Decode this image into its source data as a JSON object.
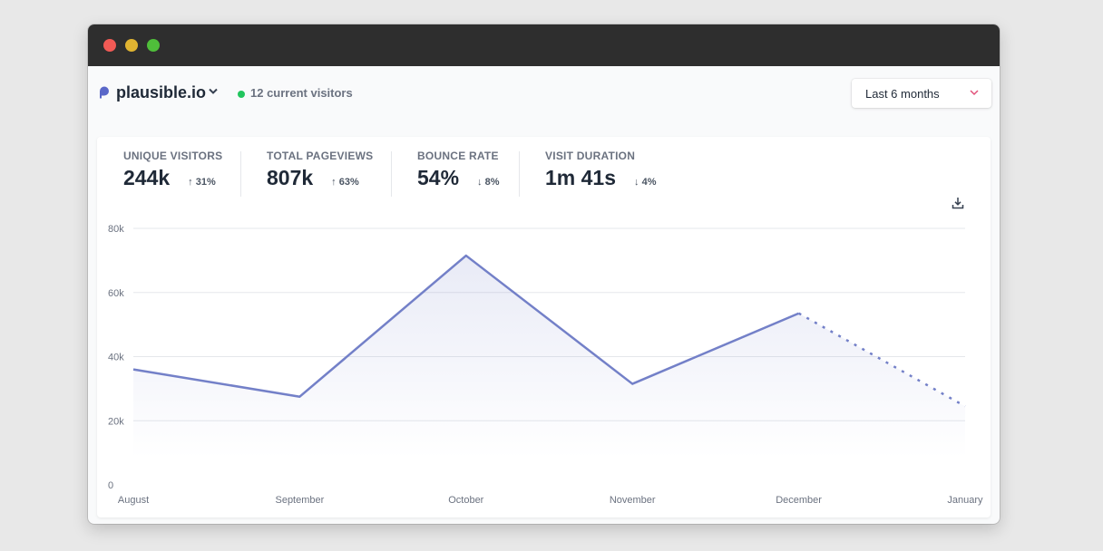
{
  "site": {
    "name": "plausible.io"
  },
  "realtime": {
    "text": "12 current visitors"
  },
  "period": {
    "label": "Last 6 months"
  },
  "stats": [
    {
      "label": "UNIQUE VISITORS",
      "value": "244k",
      "change": "↑ 31%"
    },
    {
      "label": "TOTAL PAGEVIEWS",
      "value": "807k",
      "change": "↑ 63%"
    },
    {
      "label": "BOUNCE RATE",
      "value": "54%",
      "change": "↓ 8%"
    },
    {
      "label": "VISIT DURATION",
      "value": "1m 41s",
      "change": "↓ 4%"
    }
  ],
  "icons": {
    "download": "download-icon",
    "logo": "plausible-logo-icon",
    "chevron": "chevron-down-icon"
  },
  "colors": {
    "line": "#7380c8",
    "live": "#22c55e",
    "accent": "#e1517a"
  },
  "chart_data": {
    "type": "line",
    "categories": [
      "August",
      "September",
      "October",
      "November",
      "December",
      "January"
    ],
    "values": [
      36000,
      27500,
      71500,
      31500,
      53500,
      24500
    ],
    "incomplete_from_index": 4,
    "yticks": [
      "0",
      "20k",
      "40k",
      "60k",
      "80k"
    ],
    "ylim": [
      0,
      80000
    ],
    "grid": true
  }
}
